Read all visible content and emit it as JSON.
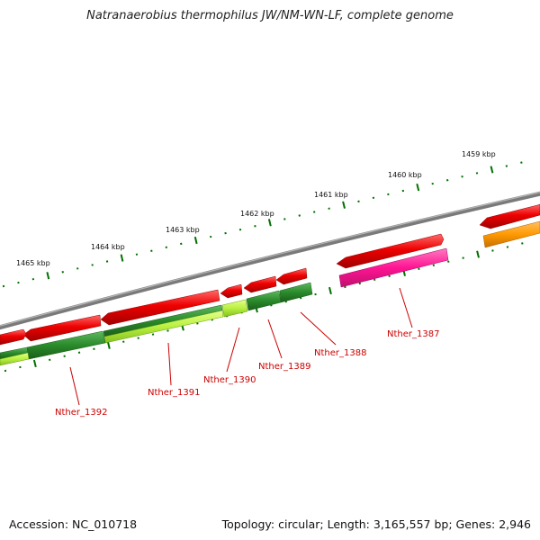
{
  "title": "Natranaerobius thermophilus JW/NM-WN-LF, complete genome",
  "footer": {
    "accession": "Accession: NC_010718",
    "summary": "Topology: circular; Length: 3,165,557 bp; Genes: 2,946"
  },
  "kbp_labels": [
    "1459 kbp",
    "1460 kbp",
    "1461 kbp",
    "1462 kbp",
    "1463 kbp",
    "1464 kbp",
    "1465 kbp"
  ],
  "gene_labels": [
    "Nther_1387",
    "Nther_1388",
    "Nther_1389",
    "Nther_1390",
    "Nther_1391",
    "Nther_1392"
  ],
  "colors": {
    "backbone": "#7a7a7a",
    "gene_red": "#ee0000",
    "cds_dark_green": "#2a8a2a",
    "cds_light_green": "#b8f040",
    "cds_pink": "#ff1493",
    "cds_orange": "#ff9900",
    "tick_green": "#007000",
    "label_red": "#cc0000"
  }
}
